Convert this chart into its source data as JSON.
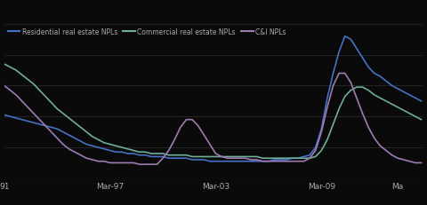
{
  "legend": [
    "Residential real estate NPLs",
    "Commercial real estate NPLs",
    "C&I NPLs"
  ],
  "line_colors": [
    "#4472C4",
    "#70AD9B",
    "#9E7BB5"
  ],
  "background_color": "#0a0a0a",
  "text_color": "#aaaaaa",
  "grid_color": "#2a2a2a",
  "x_ticks": [
    "91",
    "Mar-97",
    "Mar-03",
    "Mar-09",
    "Ma"
  ],
  "x_tick_positions": [
    0,
    72,
    144,
    216,
    268
  ],
  "ylim": [
    0,
    1.0
  ],
  "xlim": [
    0,
    285
  ],
  "residential_x": [
    0,
    4,
    8,
    12,
    16,
    20,
    24,
    28,
    32,
    36,
    40,
    44,
    48,
    52,
    56,
    60,
    64,
    68,
    72,
    76,
    80,
    84,
    88,
    92,
    96,
    100,
    104,
    108,
    112,
    116,
    120,
    124,
    128,
    132,
    136,
    140,
    144,
    148,
    152,
    156,
    160,
    164,
    168,
    172,
    176,
    180,
    184,
    188,
    192,
    196,
    200,
    204,
    208,
    212,
    216,
    220,
    224,
    228,
    232,
    236,
    240,
    244,
    248,
    252,
    256,
    260,
    264,
    268,
    272,
    276,
    280,
    284
  ],
  "residential_y": [
    0.41,
    0.4,
    0.39,
    0.38,
    0.37,
    0.36,
    0.35,
    0.34,
    0.33,
    0.32,
    0.3,
    0.28,
    0.26,
    0.24,
    0.22,
    0.21,
    0.2,
    0.19,
    0.18,
    0.17,
    0.17,
    0.16,
    0.16,
    0.15,
    0.15,
    0.14,
    0.14,
    0.14,
    0.13,
    0.13,
    0.13,
    0.13,
    0.12,
    0.12,
    0.12,
    0.11,
    0.11,
    0.11,
    0.11,
    0.11,
    0.11,
    0.11,
    0.11,
    0.11,
    0.11,
    0.11,
    0.12,
    0.12,
    0.12,
    0.13,
    0.13,
    0.14,
    0.15,
    0.2,
    0.32,
    0.52,
    0.68,
    0.82,
    0.92,
    0.9,
    0.84,
    0.78,
    0.72,
    0.68,
    0.66,
    0.63,
    0.6,
    0.58,
    0.56,
    0.54,
    0.52,
    0.5
  ],
  "commercial_x": [
    0,
    4,
    8,
    12,
    16,
    20,
    24,
    28,
    32,
    36,
    40,
    44,
    48,
    52,
    56,
    60,
    64,
    68,
    72,
    76,
    80,
    84,
    88,
    92,
    96,
    100,
    104,
    108,
    112,
    116,
    120,
    124,
    128,
    132,
    136,
    140,
    144,
    148,
    152,
    156,
    160,
    164,
    168,
    172,
    176,
    180,
    184,
    188,
    192,
    196,
    200,
    204,
    208,
    212,
    216,
    220,
    224,
    228,
    232,
    236,
    240,
    244,
    248,
    252,
    256,
    260,
    264,
    268,
    272,
    276,
    280,
    284
  ],
  "commercial_y": [
    0.74,
    0.72,
    0.7,
    0.67,
    0.64,
    0.61,
    0.57,
    0.53,
    0.49,
    0.45,
    0.42,
    0.39,
    0.36,
    0.33,
    0.3,
    0.27,
    0.25,
    0.23,
    0.22,
    0.21,
    0.2,
    0.19,
    0.18,
    0.17,
    0.17,
    0.16,
    0.16,
    0.16,
    0.15,
    0.15,
    0.15,
    0.15,
    0.14,
    0.14,
    0.14,
    0.14,
    0.14,
    0.14,
    0.14,
    0.14,
    0.14,
    0.14,
    0.14,
    0.14,
    0.13,
    0.13,
    0.13,
    0.13,
    0.13,
    0.13,
    0.13,
    0.13,
    0.13,
    0.14,
    0.18,
    0.25,
    0.35,
    0.45,
    0.53,
    0.57,
    0.59,
    0.59,
    0.57,
    0.54,
    0.52,
    0.5,
    0.48,
    0.46,
    0.44,
    0.42,
    0.4,
    0.38
  ],
  "ci_x": [
    0,
    4,
    8,
    12,
    16,
    20,
    24,
    28,
    32,
    36,
    40,
    44,
    48,
    52,
    56,
    60,
    64,
    68,
    72,
    76,
    80,
    84,
    88,
    92,
    96,
    100,
    104,
    108,
    112,
    116,
    120,
    124,
    128,
    132,
    136,
    140,
    144,
    148,
    152,
    156,
    160,
    164,
    168,
    172,
    176,
    180,
    184,
    188,
    192,
    196,
    200,
    204,
    208,
    212,
    216,
    220,
    224,
    228,
    232,
    236,
    240,
    244,
    248,
    252,
    256,
    260,
    264,
    268,
    272,
    276,
    280,
    284
  ],
  "ci_y": [
    0.6,
    0.57,
    0.54,
    0.5,
    0.46,
    0.42,
    0.38,
    0.34,
    0.3,
    0.26,
    0.22,
    0.19,
    0.17,
    0.15,
    0.13,
    0.12,
    0.11,
    0.11,
    0.1,
    0.1,
    0.1,
    0.1,
    0.1,
    0.09,
    0.09,
    0.09,
    0.09,
    0.13,
    0.18,
    0.25,
    0.33,
    0.38,
    0.38,
    0.34,
    0.28,
    0.22,
    0.16,
    0.14,
    0.13,
    0.13,
    0.13,
    0.13,
    0.12,
    0.12,
    0.11,
    0.11,
    0.11,
    0.11,
    0.11,
    0.11,
    0.11,
    0.11,
    0.13,
    0.18,
    0.3,
    0.46,
    0.6,
    0.68,
    0.68,
    0.62,
    0.52,
    0.42,
    0.33,
    0.26,
    0.21,
    0.18,
    0.15,
    0.13,
    0.12,
    0.11,
    0.1,
    0.1
  ]
}
